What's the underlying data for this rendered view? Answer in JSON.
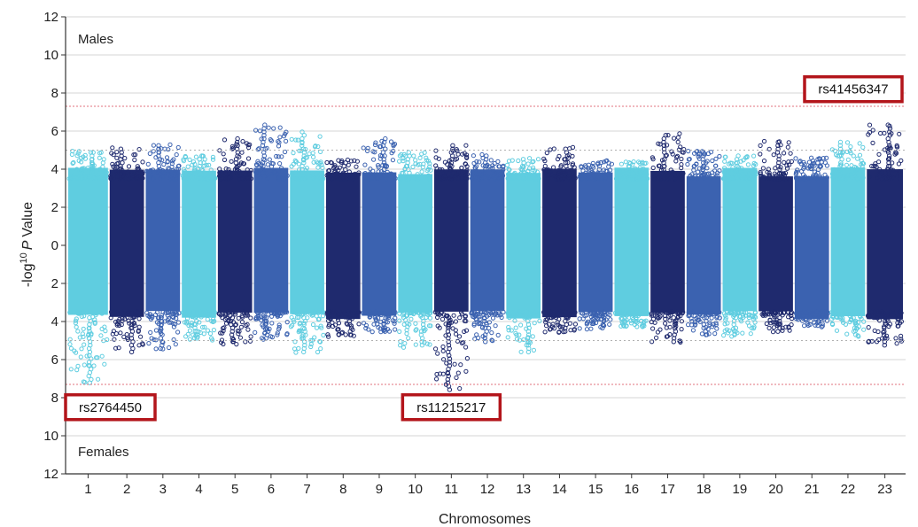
{
  "chart_data": {
    "type": "scatter",
    "subtype": "miami-plot",
    "xlabel": "Chromosomes",
    "ylabel": "-log",
    "ylabel_sup": "10",
    "ylabel_suffix_italic": "P",
    "ylabel_suffix": "Value",
    "top_panel_label": "Males",
    "bottom_panel_label": "Females",
    "ylim_top": [
      0,
      12
    ],
    "ylim_bottom": [
      0,
      12
    ],
    "y_tick_labels": [
      "12",
      "10",
      "8",
      "6",
      "4",
      "2",
      "0",
      "2",
      "4",
      "6",
      "8",
      "10",
      "12"
    ],
    "significance_threshold": 7.3,
    "suggestive_threshold": 5,
    "grid": true,
    "colors": {
      "light": "#5fcde0",
      "mid": "#3b62b0",
      "dark": "#1f2a6e",
      "threshold": "#e0707c",
      "gridline": "#d6d6d6",
      "annotation_border": "#b3151b"
    },
    "chromosomes": [
      {
        "label": "1",
        "width": 1.15,
        "color": "light",
        "top_max": 5.0,
        "bottom_max": 7.3
      },
      {
        "label": "2",
        "width": 1.0,
        "color": "dark",
        "top_max": 5.2,
        "bottom_max": 5.6
      },
      {
        "label": "3",
        "width": 1.0,
        "color": "mid",
        "top_max": 5.3,
        "bottom_max": 5.5
      },
      {
        "label": "4",
        "width": 1.0,
        "color": "light",
        "top_max": 4.7,
        "bottom_max": 5.0
      },
      {
        "label": "5",
        "width": 1.0,
        "color": "dark",
        "top_max": 5.6,
        "bottom_max": 5.2
      },
      {
        "label": "6",
        "width": 1.0,
        "color": "mid",
        "top_max": 6.4,
        "bottom_max": 5.0
      },
      {
        "label": "7",
        "width": 1.0,
        "color": "light",
        "top_max": 6.1,
        "bottom_max": 5.7
      },
      {
        "label": "8",
        "width": 1.0,
        "color": "dark",
        "top_max": 4.5,
        "bottom_max": 4.8
      },
      {
        "label": "9",
        "width": 1.0,
        "color": "mid",
        "top_max": 5.7,
        "bottom_max": 4.6
      },
      {
        "label": "10",
        "width": 1.0,
        "color": "light",
        "top_max": 4.9,
        "bottom_max": 5.4
      },
      {
        "label": "11",
        "width": 1.0,
        "color": "dark",
        "top_max": 5.3,
        "bottom_max": 7.7
      },
      {
        "label": "12",
        "width": 1.0,
        "color": "mid",
        "top_max": 4.8,
        "bottom_max": 5.2
      },
      {
        "label": "13",
        "width": 1.0,
        "color": "light",
        "top_max": 4.6,
        "bottom_max": 5.7
      },
      {
        "label": "14",
        "width": 1.0,
        "color": "dark",
        "top_max": 5.2,
        "bottom_max": 4.6
      },
      {
        "label": "15",
        "width": 1.0,
        "color": "mid",
        "top_max": 4.5,
        "bottom_max": 4.5
      },
      {
        "label": "16",
        "width": 1.0,
        "color": "light",
        "top_max": 4.4,
        "bottom_max": 4.3
      },
      {
        "label": "17",
        "width": 1.0,
        "color": "dark",
        "top_max": 5.9,
        "bottom_max": 5.1
      },
      {
        "label": "18",
        "width": 1.0,
        "color": "mid",
        "top_max": 5.0,
        "bottom_max": 4.7
      },
      {
        "label": "19",
        "width": 1.0,
        "color": "light",
        "top_max": 4.7,
        "bottom_max": 4.8
      },
      {
        "label": "20",
        "width": 1.0,
        "color": "dark",
        "top_max": 5.5,
        "bottom_max": 4.6
      },
      {
        "label": "21",
        "width": 1.0,
        "color": "mid",
        "top_max": 4.6,
        "bottom_max": 4.3
      },
      {
        "label": "22",
        "width": 1.0,
        "color": "light",
        "top_max": 5.5,
        "bottom_max": 4.8
      },
      {
        "label": "23",
        "width": 1.05,
        "color": "dark",
        "top_max": 6.4,
        "bottom_max": 5.4
      }
    ],
    "annotations": [
      {
        "label": "rs41456347",
        "panel": "top",
        "chromosome": "23",
        "value": 8.2
      },
      {
        "label": "rs2764450",
        "panel": "bottom",
        "chromosome": "1",
        "value": 8.5
      },
      {
        "label": "rs11215217",
        "panel": "bottom",
        "chromosome": "11",
        "value": 8.5
      }
    ]
  }
}
